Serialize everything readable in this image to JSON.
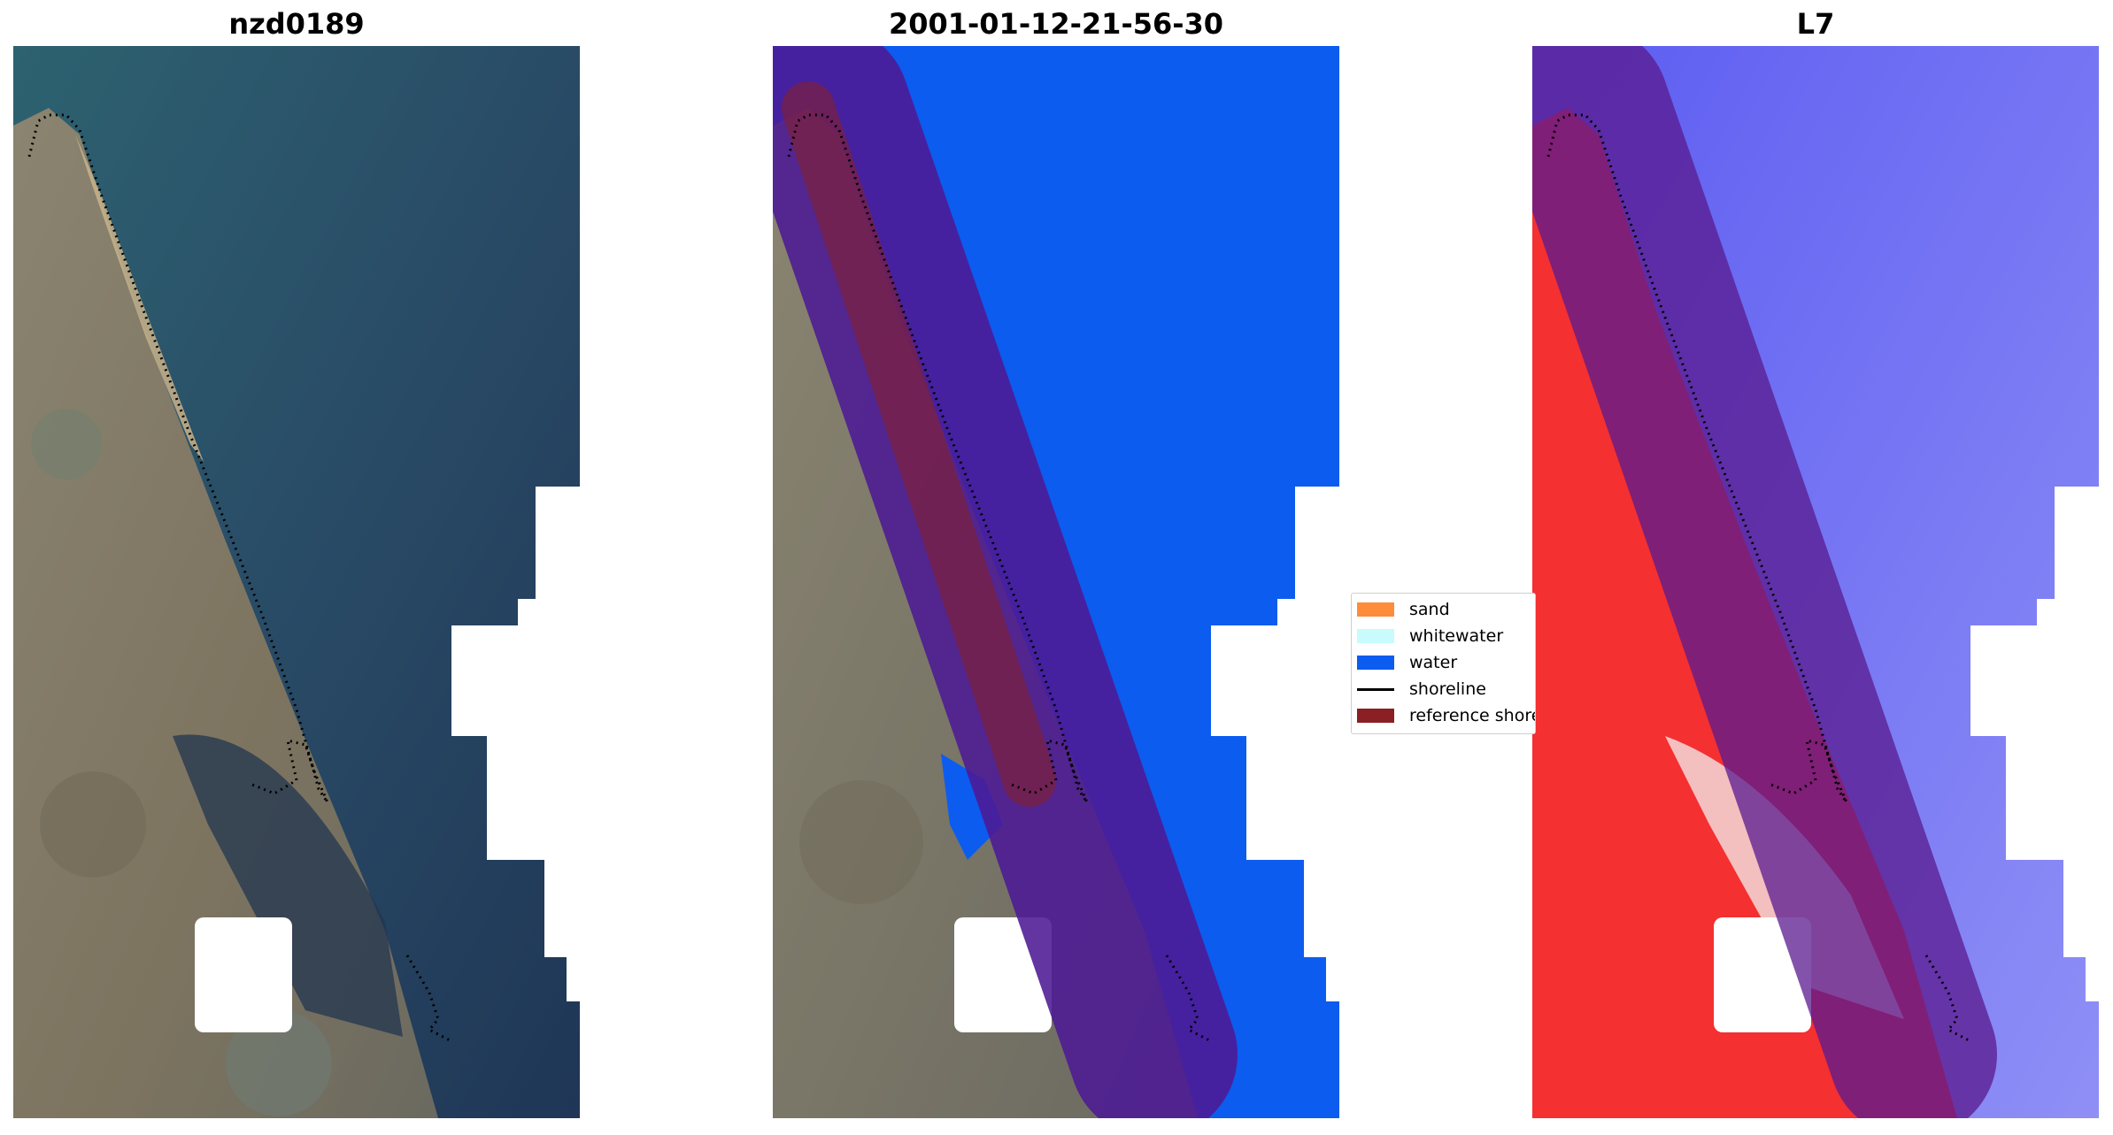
{
  "panels": [
    {
      "title": "nzd0189",
      "kind": "rgb"
    },
    {
      "title": "2001-01-12-21-56-30",
      "kind": "classified"
    },
    {
      "title": "L7",
      "kind": "index"
    }
  ],
  "legend": {
    "items": [
      {
        "label": "sand",
        "color": "#ff8c3a",
        "type": "patch"
      },
      {
        "label": "whitewater",
        "color": "#c8fbfb",
        "type": "patch"
      },
      {
        "label": "water",
        "color": "#0c5cf0",
        "type": "patch"
      },
      {
        "label": "shoreline",
        "color": "#000000",
        "type": "line"
      },
      {
        "label": "reference shoreline buffer",
        "color": "#8a1f24",
        "type": "patch"
      }
    ]
  },
  "colors": {
    "buffer_overlay": "#5a1a8f",
    "reference_shoreline": "#8a1f24",
    "water_class": "#0c5cf0",
    "shoreline_dots": "#000000",
    "land": "#7f7661",
    "sea": "#2f5570"
  }
}
